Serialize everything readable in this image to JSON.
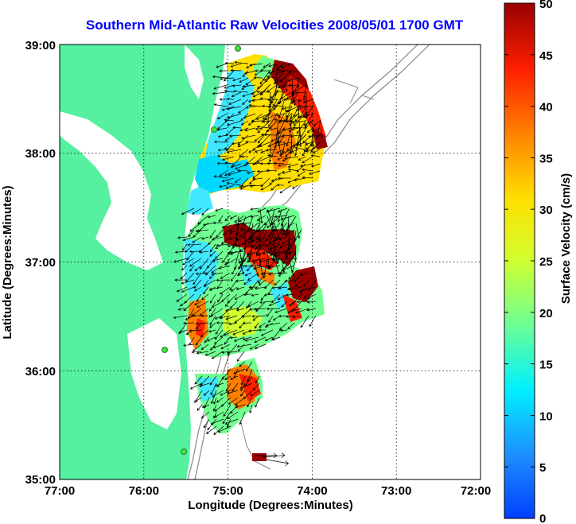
{
  "title": "Southern Mid-Atlantic Raw Velocities 2008/05/01 1700 GMT",
  "axes": {
    "xlabel": "Longitude (Degrees:Minutes)",
    "ylabel": "Latitude (Degrees:Minutes)",
    "x_ticks": [
      "77:00",
      "76:00",
      "75:00",
      "74:00",
      "73:00",
      "72:00"
    ],
    "y_ticks": [
      "39:00",
      "38:00",
      "37:00",
      "36:00",
      "35:00"
    ],
    "x_range": [
      -77,
      -72
    ],
    "y_range": [
      35,
      39
    ],
    "grid": true
  },
  "colorbar": {
    "label": "Surface Velocity (cm/s)",
    "ticks": [
      "50",
      "45",
      "40",
      "35",
      "30",
      "25",
      "20",
      "15",
      "10",
      "5",
      "0"
    ],
    "range": [
      0,
      50
    ]
  },
  "colors": {
    "land": "#55f0a0",
    "ocean": "#ffffff",
    "title": "#0000ff",
    "station": "#44e040"
  }
}
